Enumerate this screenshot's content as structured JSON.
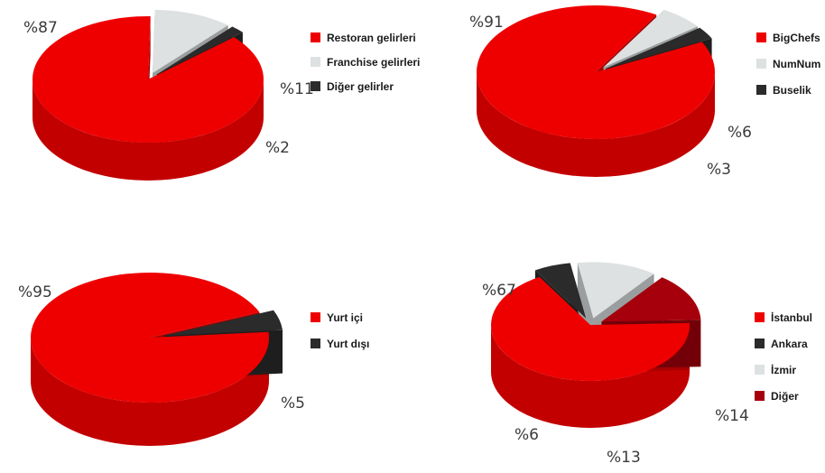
{
  "chart_data": [
    {
      "type": "pie",
      "categories": [
        "Restoran gelirleri",
        "Franchise gelirleri",
        "Diğer gelirler"
      ],
      "values": [
        87,
        11,
        2
      ],
      "value_labels": [
        "%87",
        "%11",
        "%2"
      ],
      "colors": [
        "#ee0000",
        "#dde1e1",
        "#2b2b2b"
      ],
      "legend": "right"
    },
    {
      "type": "pie",
      "categories": [
        "BigChefs",
        "NumNum",
        "Buselik"
      ],
      "values": [
        91,
        6,
        3
      ],
      "value_labels": [
        "%91",
        "%6",
        "%3"
      ],
      "colors": [
        "#ee0000",
        "#dde1e1",
        "#2b2b2b"
      ],
      "legend": "right"
    },
    {
      "type": "pie",
      "categories": [
        "Yurt içi",
        "Yurt dışı"
      ],
      "values": [
        95,
        5
      ],
      "value_labels": [
        "%95",
        "%5"
      ],
      "colors": [
        "#ee0000",
        "#2b2b2b"
      ],
      "legend": "right"
    },
    {
      "type": "pie",
      "categories": [
        "İstanbul",
        "Ankara",
        "İzmir",
        "Diğer"
      ],
      "values": [
        67,
        6,
        13,
        14
      ],
      "value_labels": [
        "%67",
        "%6",
        "%13",
        "%14"
      ],
      "colors": [
        "#ee0000",
        "#2b2b2b",
        "#dde1e1",
        "#a5000c"
      ],
      "legend": "right"
    }
  ]
}
